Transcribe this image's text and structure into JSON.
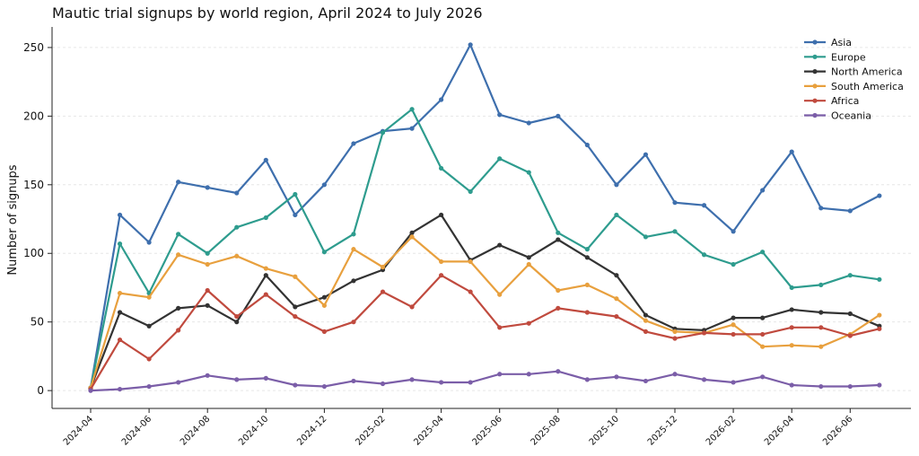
{
  "chart_data": {
    "type": "line",
    "title": "Mautic trial signups by world region, April 2024 to July 2026",
    "xlabel": "",
    "ylabel": "Number of signups",
    "x": [
      "2024-04",
      "2024-05",
      "2024-06",
      "2024-07",
      "2024-08",
      "2024-09",
      "2024-10",
      "2024-11",
      "2024-12",
      "2025-01",
      "2025-02",
      "2025-03",
      "2025-04",
      "2025-05",
      "2025-06",
      "2025-07",
      "2025-08",
      "2025-09",
      "2025-10",
      "2025-11",
      "2025-12",
      "2026-01",
      "2026-02",
      "2026-03",
      "2026-04",
      "2026-05",
      "2026-06",
      "2026-07"
    ],
    "xtick_labels": [
      "2024-04",
      "2024-06",
      "2024-08",
      "2024-10",
      "2024-12",
      "2025-02",
      "2025-04",
      "2025-06",
      "2025-08",
      "2025-10",
      "2025-12",
      "2026-02",
      "2026-04",
      "2026-06"
    ],
    "yticks": [
      0,
      50,
      100,
      150,
      200,
      250
    ],
    "ylim": [
      -13,
      265
    ],
    "grid": "horizontal",
    "legend_position": "top-right",
    "series": [
      {
        "name": "Asia",
        "color": "#3e6fad",
        "values": [
          2,
          128,
          108,
          152,
          148,
          144,
          168,
          128,
          150,
          180,
          189,
          191,
          212,
          252,
          201,
          195,
          200,
          179,
          150,
          172,
          137,
          135,
          116,
          146,
          174,
          133,
          131,
          142
        ]
      },
      {
        "name": "Europe",
        "color": "#2e9c8e",
        "values": [
          2,
          107,
          71,
          114,
          100,
          119,
          126,
          143,
          101,
          114,
          188,
          205,
          162,
          145,
          169,
          159,
          115,
          103,
          128,
          112,
          116,
          99,
          92,
          101,
          75,
          77,
          84,
          81
        ]
      },
      {
        "name": "North America",
        "color": "#333333",
        "values": [
          2,
          57,
          47,
          60,
          62,
          50,
          84,
          61,
          68,
          80,
          88,
          115,
          128,
          95,
          106,
          97,
          110,
          97,
          84,
          55,
          45,
          44,
          53,
          53,
          59,
          57,
          56,
          47
        ]
      },
      {
        "name": "South America",
        "color": "#e8a03e",
        "values": [
          2,
          71,
          68,
          99,
          92,
          98,
          89,
          83,
          62,
          103,
          90,
          112,
          94,
          94,
          70,
          92,
          73,
          77,
          67,
          51,
          43,
          42,
          48,
          32,
          33,
          32,
          41,
          55
        ]
      },
      {
        "name": "Africa",
        "color": "#c04a3e",
        "values": [
          1,
          37,
          23,
          44,
          73,
          54,
          70,
          54,
          43,
          50,
          72,
          61,
          84,
          72,
          46,
          49,
          60,
          57,
          54,
          43,
          38,
          42,
          41,
          41,
          46,
          46,
          40,
          45
        ]
      },
      {
        "name": "Oceania",
        "color": "#7b5ea8",
        "values": [
          0,
          1,
          3,
          6,
          11,
          8,
          9,
          4,
          3,
          7,
          5,
          8,
          6,
          6,
          12,
          12,
          14,
          8,
          10,
          7,
          12,
          8,
          6,
          10,
          4,
          3,
          3,
          4
        ]
      }
    ]
  }
}
